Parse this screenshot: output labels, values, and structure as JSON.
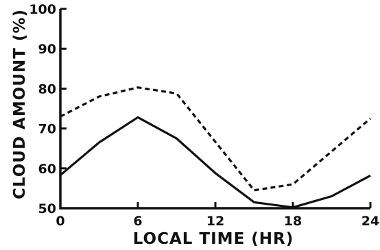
{
  "chart_data": {
    "type": "line",
    "title": "",
    "xlabel": "LOCAL TIME (HR)",
    "ylabel": "CLOUD AMOUNT (%)",
    "xlim": [
      0,
      24
    ],
    "ylim": [
      50,
      100
    ],
    "xticks": [
      0,
      6,
      12,
      18,
      24
    ],
    "yticks": [
      50,
      60,
      70,
      80,
      90,
      100
    ],
    "grid": false,
    "legend": "none",
    "series": [
      {
        "style": "dashed",
        "color": "#111111",
        "x": [
          0,
          3,
          6,
          9,
          15,
          18,
          24
        ],
        "y": [
          73,
          78,
          80.3,
          78.8,
          54.5,
          56,
          72.5
        ]
      },
      {
        "style": "solid",
        "color": "#111111",
        "x": [
          0,
          3,
          6,
          9,
          12,
          15,
          18,
          21,
          24
        ],
        "y": [
          58.3,
          66.5,
          72.8,
          67.5,
          58.8,
          51.5,
          50.2,
          53,
          58.2
        ]
      }
    ]
  }
}
